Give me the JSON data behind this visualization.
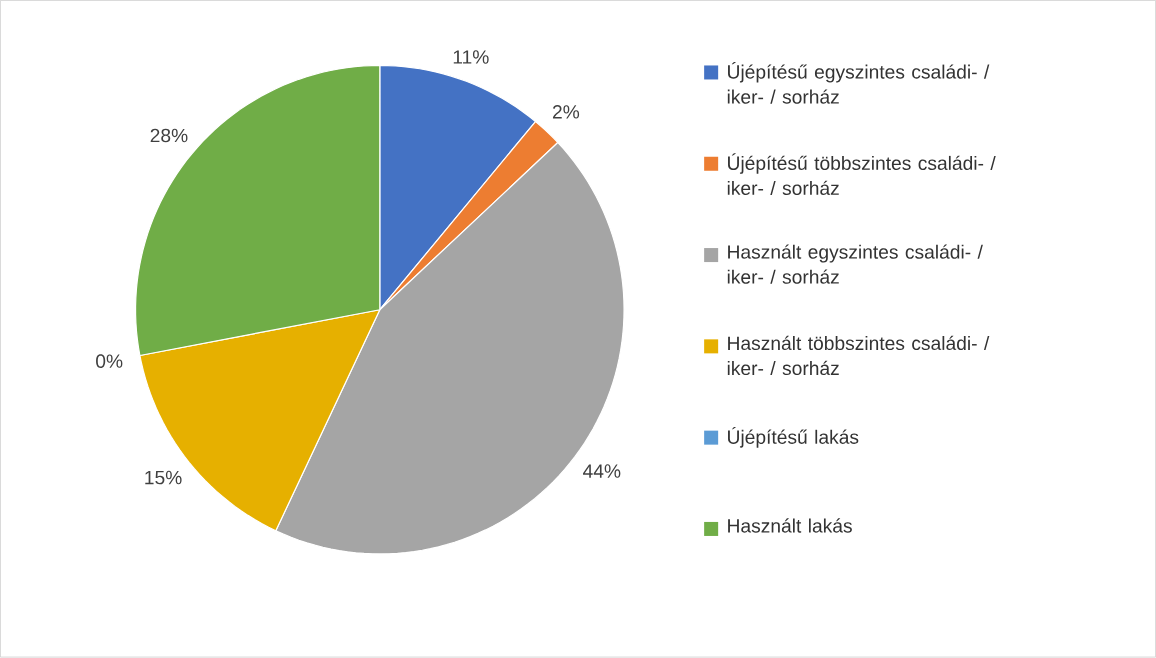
{
  "chart_data": {
    "type": "pie",
    "categories": [
      "Újépítésű egyszintes családi- / iker- / sorház",
      "Újépítésű többszintes családi- / iker- / sorház",
      "Használt egyszintes családi- / iker- / sorház",
      "Használt többszintes családi- / iker- / sorház",
      "Újépítésű lakás",
      "Használt lakás"
    ],
    "values": [
      11,
      2,
      44,
      15,
      0,
      28
    ],
    "value_labels": [
      "11%",
      "2%",
      "44%",
      "15%",
      "0%",
      "28%"
    ],
    "colors": [
      "#4472c4",
      "#ed7d31",
      "#a5a5a5",
      "#e6b000",
      "#5b9bd5",
      "#70ad47"
    ],
    "legend": "right"
  }
}
